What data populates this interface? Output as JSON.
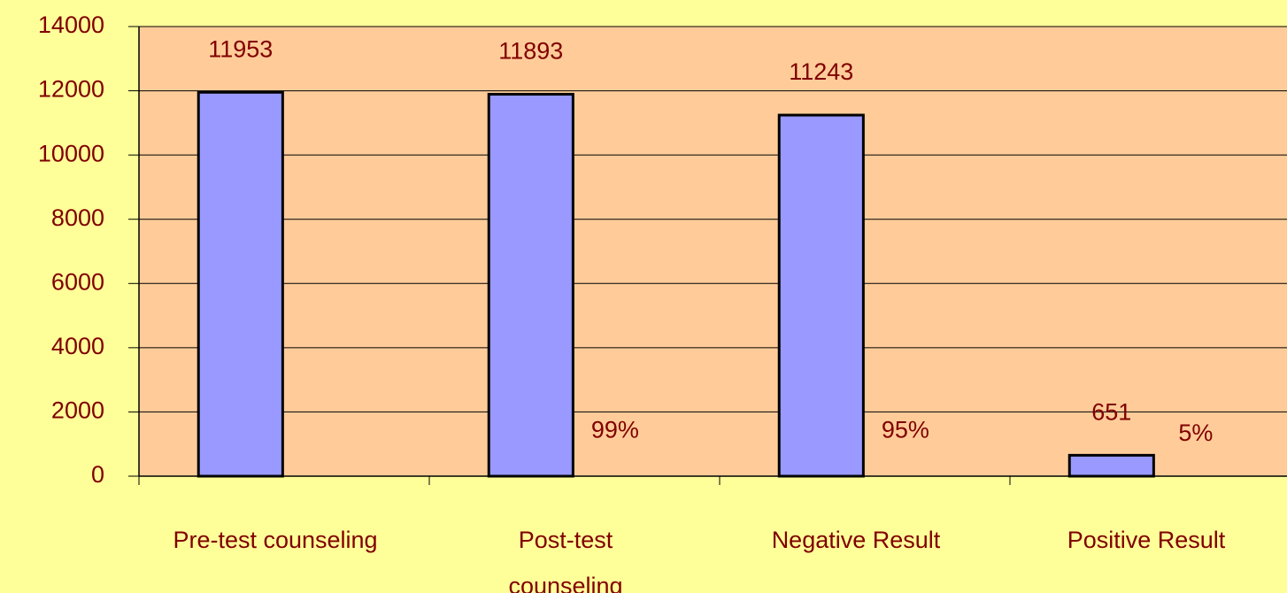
{
  "chart_data": {
    "type": "bar",
    "categories": [
      "Pre-test counseling",
      "Post-test counseling",
      "Negative Result",
      "Positive Result"
    ],
    "series": [
      {
        "color": "#9999ff",
        "values": [
          11953,
          11893,
          11243,
          651
        ]
      },
      {
        "color": "none",
        "values": [
          null,
          99,
          95,
          5
        ],
        "value_labels": [
          null,
          "99%",
          "95%",
          "5%"
        ]
      }
    ],
    "ylim": [
      0,
      14000
    ],
    "yticks": [
      0,
      2000,
      4000,
      6000,
      8000,
      10000,
      12000,
      14000
    ],
    "grid": true,
    "background": "#ffff99",
    "plot_background": "#ffcc99",
    "text_color": "#800000"
  }
}
